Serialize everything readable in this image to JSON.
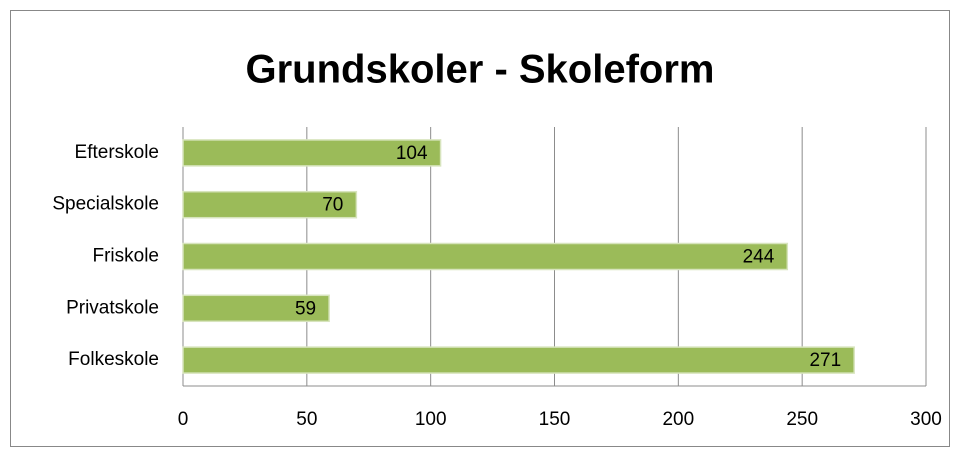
{
  "chart_data": {
    "type": "barh",
    "title": "Grundskoler - Skoleform",
    "categories": [
      "Efterskole",
      "Specialskole",
      "Friskole",
      "Privatskole",
      "Folkeskole"
    ],
    "values": [
      104,
      70,
      244,
      59,
      271
    ],
    "color": "#9bbb59",
    "xlim": [
      0,
      300
    ],
    "xticks": [
      0,
      50,
      100,
      150,
      200,
      250,
      300
    ],
    "grid": true
  }
}
